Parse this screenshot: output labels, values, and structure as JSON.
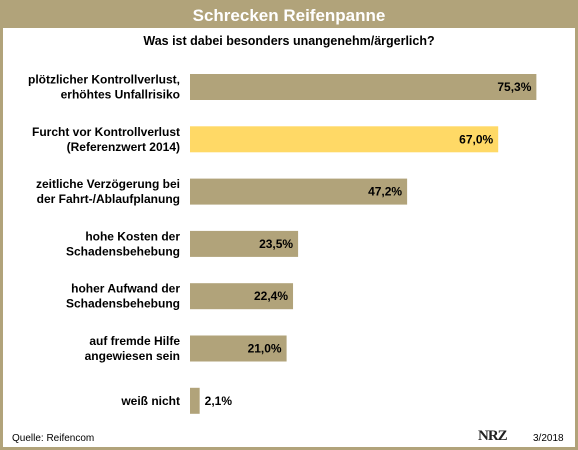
{
  "header": {
    "title": "Schrecken Reifenpanne",
    "subtitle": "Was ist dabei besonders unangenehm/ärgerlich?"
  },
  "footer": {
    "source": "Quelle: Reifencom",
    "logo": "NRZ",
    "date": "3/2018"
  },
  "colors": {
    "frame": "#b1a37a",
    "bar": "#b1a37a",
    "highlight": "#ffd966"
  },
  "chart_data": {
    "type": "bar",
    "orientation": "horizontal",
    "categories": [
      [
        "plötzlicher Kontrollverlust,",
        "erhöhtes Unfallrisiko"
      ],
      [
        "Furcht vor Kontrollverlust",
        "(Referenzwert 2014)"
      ],
      [
        "zeitliche Verzögerung bei",
        "der Fahrt-/Ablaufplanung"
      ],
      [
        "hohe Kosten der",
        "Schadensbehebung"
      ],
      [
        "hoher Aufwand der",
        "Schadensbehebung"
      ],
      [
        "auf fremde Hilfe",
        "angewiesen  sein"
      ],
      [
        "weiß nicht"
      ]
    ],
    "values": [
      75.3,
      67.0,
      47.2,
      23.5,
      22.4,
      21.0,
      2.1
    ],
    "value_labels": [
      "75,3%",
      "67,0%",
      "47,2%",
      "23,5%",
      "22,4%",
      "21,0%",
      "2,1%"
    ],
    "highlight_index": 1,
    "xlim": [
      0,
      100
    ],
    "grid": false,
    "legend": "none"
  }
}
